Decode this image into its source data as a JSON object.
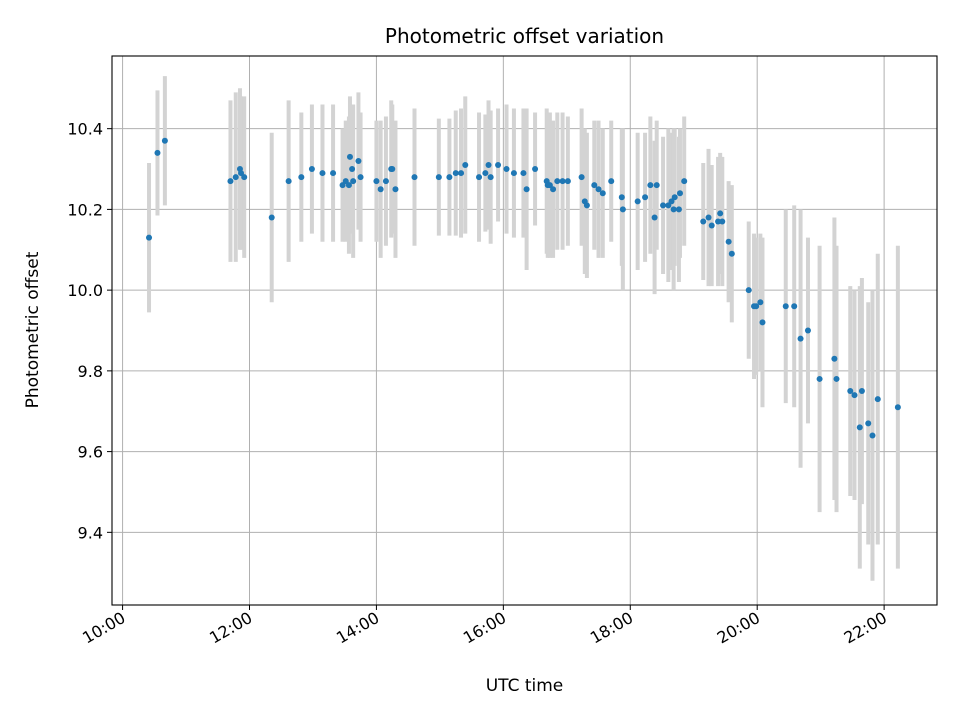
{
  "chart_data": {
    "type": "scatter",
    "title": "Photometric offset variation",
    "xlabel": "UTC time",
    "ylabel": "Photometric offset",
    "xlim": [
      "09:50",
      "22:50"
    ],
    "ylim": [
      9.22,
      10.58
    ],
    "x_ticks": [
      "10:00",
      "12:00",
      "14:00",
      "16:00",
      "18:00",
      "20:00",
      "22:00"
    ],
    "y_ticks": [
      "9.4",
      "9.6",
      "9.8",
      "10.0",
      "10.2",
      "10.4"
    ],
    "grid": true,
    "colors": {
      "points": "#1f77b4",
      "error_bars": "#d3d3d3",
      "grid": "#b0b0b0"
    },
    "series": [
      {
        "x": [
          "10:25",
          "10:33",
          "10:40",
          "11:42",
          "11:47",
          "11:51",
          "11:52",
          "11:55",
          "12:21",
          "12:37",
          "12:49",
          "12:59",
          "13:09",
          "13:19",
          "13:28",
          "13:31",
          "13:34",
          "13:35",
          "13:37",
          "13:38",
          "13:43",
          "13:45",
          "14:00",
          "14:04",
          "14:09",
          "14:14",
          "14:15",
          "14:18",
          "14:36",
          "14:59",
          "15:09",
          "15:15",
          "15:20",
          "15:24",
          "15:37",
          "15:43",
          "15:46",
          "15:48",
          "15:55",
          "16:03",
          "16:10",
          "16:19",
          "16:22",
          "16:30",
          "16:41",
          "16:42",
          "16:44",
          "16:47",
          "16:51",
          "16:56",
          "17:01",
          "17:14",
          "17:17",
          "17:19",
          "17:26",
          "17:30",
          "17:34",
          "17:42",
          "17:52",
          "17:53",
          "18:07",
          "18:14",
          "18:19",
          "18:23",
          "18:25",
          "18:31",
          "18:36",
          "18:39",
          "18:41",
          "18:42",
          "18:46",
          "18:47",
          "18:51",
          "19:09",
          "19:14",
          "19:17",
          "19:23",
          "19:25",
          "19:27",
          "19:33",
          "19:36",
          "19:52",
          "19:57",
          "19:59",
          "20:03",
          "20:05",
          "20:27",
          "20:35",
          "20:41",
          "20:48",
          "20:59",
          "21:13",
          "21:15",
          "21:28",
          "21:32",
          "21:37",
          "21:39",
          "21:45",
          "21:49",
          "21:54",
          "22:13"
        ],
        "y": [
          10.13,
          10.34,
          10.37,
          10.27,
          10.28,
          10.3,
          10.29,
          10.28,
          10.18,
          10.27,
          10.28,
          10.3,
          10.29,
          10.29,
          10.26,
          10.27,
          10.26,
          10.33,
          10.3,
          10.27,
          10.32,
          10.28,
          10.27,
          10.25,
          10.27,
          10.3,
          10.3,
          10.25,
          10.28,
          10.28,
          10.28,
          10.29,
          10.29,
          10.31,
          10.28,
          10.29,
          10.31,
          10.28,
          10.31,
          10.3,
          10.29,
          10.29,
          10.25,
          10.3,
          10.27,
          10.26,
          10.26,
          10.25,
          10.27,
          10.27,
          10.27,
          10.28,
          10.22,
          10.21,
          10.26,
          10.25,
          10.24,
          10.27,
          10.23,
          10.2,
          10.22,
          10.23,
          10.26,
          10.18,
          10.26,
          10.21,
          10.21,
          10.22,
          10.2,
          10.23,
          10.2,
          10.24,
          10.27,
          10.17,
          10.18,
          10.16,
          10.17,
          10.19,
          10.17,
          10.12,
          10.09,
          10.0,
          9.96,
          9.96,
          9.97,
          9.92,
          9.96,
          9.96,
          9.88,
          9.9,
          9.78,
          9.83,
          9.78,
          9.75,
          9.74,
          9.66,
          9.75,
          9.67,
          9.64,
          9.73,
          9.71
        ],
        "err": [
          0.185,
          0.155,
          0.16,
          0.2,
          0.21,
          0.2,
          0.19,
          0.2,
          0.21,
          0.2,
          0.16,
          0.16,
          0.17,
          0.17,
          0.14,
          0.15,
          0.17,
          0.15,
          0.16,
          0.19,
          0.17,
          0.16,
          0.15,
          0.17,
          0.16,
          0.17,
          0.16,
          0.17,
          0.17,
          0.145,
          0.145,
          0.155,
          0.16,
          0.17,
          0.16,
          0.145,
          0.16,
          0.165,
          0.14,
          0.16,
          0.16,
          0.16,
          0.2,
          0.14,
          0.18,
          0.18,
          0.18,
          0.17,
          0.17,
          0.17,
          0.16,
          0.17,
          0.18,
          0.18,
          0.16,
          0.17,
          0.16,
          0.15,
          0.17,
          0.2,
          0.17,
          0.16,
          0.17,
          0.19,
          0.16,
          0.17,
          0.19,
          0.17,
          0.2,
          0.17,
          0.18,
          0.16,
          0.16,
          0.145,
          0.17,
          0.15,
          0.16,
          0.15,
          0.16,
          0.15,
          0.17,
          0.17,
          0.18,
          0.17,
          0.17,
          0.21,
          0.24,
          0.25,
          0.32,
          0.23,
          0.33,
          0.35,
          0.33,
          0.26,
          0.26,
          0.35,
          0.28,
          0.3,
          0.36,
          0.36,
          0.4
        ]
      }
    ]
  }
}
